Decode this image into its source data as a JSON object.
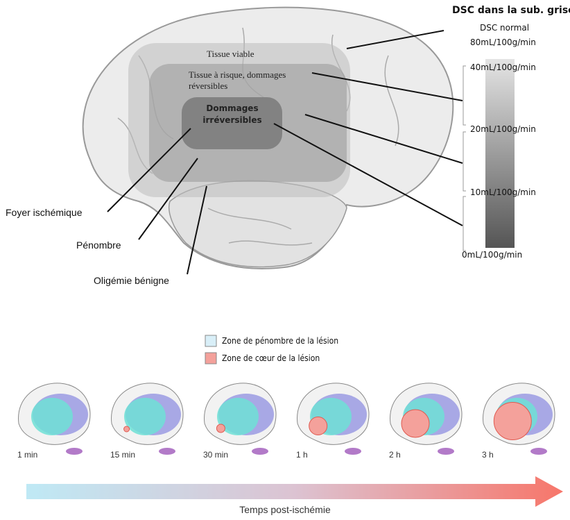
{
  "top": {
    "scale_title": "DSC dans la sub. grise",
    "normal_label": "DSC normal",
    "scale_labels": [
      "80mL/100g/min",
      "40mL/100g/min",
      "20mL/100g/min",
      "10mL/100g/min",
      "0mL/100g/min"
    ],
    "zones": [
      "Tissue viable",
      "Tissue à risque, dommages réversibles",
      "Dommages irréversibles"
    ],
    "regions": [
      "Foyer ischémique",
      "Pénombre",
      "Oligémie bénigne"
    ]
  },
  "legend": [
    {
      "label": "Zone de pénombre de la lésion",
      "color": "#d9eff8"
    },
    {
      "label": "Zone de cœur de la lésion",
      "color": "#f4a19b"
    }
  ],
  "timeline": {
    "times": [
      "1 min",
      "15 min",
      "30 min",
      "1 h",
      "2 h",
      "3 h"
    ],
    "axis_label": "Temps post-ischémie"
  }
}
